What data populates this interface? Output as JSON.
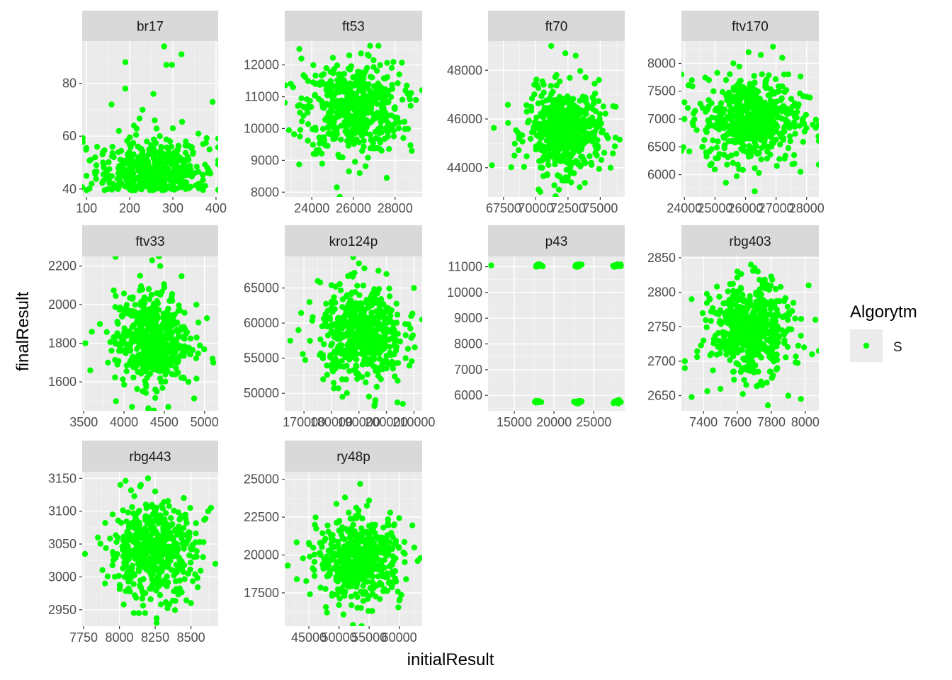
{
  "chart_data": {
    "type": "scatter",
    "xlabel": "initialResult",
    "ylabel": "finalResult",
    "grid": true,
    "legend": {
      "title": "Algorytm",
      "placement": "right",
      "entries": [
        {
          "label": "S",
          "color": "#00FF00"
        }
      ]
    },
    "series_color": "#00FF00",
    "panels": [
      {
        "title": "br17",
        "xlim": [
          90,
          405
        ],
        "ylim": [
          37,
          96
        ],
        "xticks": [
          100,
          200,
          300,
          400
        ],
        "xtick_labels": [
          "100",
          "200",
          "300",
          "400"
        ],
        "yticks": [
          40,
          60,
          80
        ],
        "ytick_labels": [
          "40",
          "60",
          "80"
        ],
        "points": [
          [
            280,
            94
          ],
          [
            320,
            91
          ],
          [
            190,
            88
          ],
          [
            285,
            87
          ],
          [
            298,
            87
          ],
          [
            392,
            73
          ],
          [
            158,
            72
          ],
          [
            190,
            78
          ],
          [
            255,
            76
          ],
          [
            230,
            70
          ],
          [
            258,
            66
          ],
          [
            210,
            64
          ],
          [
            300,
            63
          ],
          [
            175,
            62
          ],
          [
            330,
            58
          ],
          [
            370,
            57
          ],
          [
            385,
            55
          ],
          [
            120,
            52
          ],
          [
            140,
            49
          ],
          [
            100,
            45
          ],
          [
            112,
            42
          ],
          [
            150,
            40
          ],
          [
            200,
            40
          ],
          [
            260,
            41
          ],
          [
            310,
            43
          ],
          [
            350,
            46
          ],
          [
            380,
            48
          ],
          [
            160,
            56
          ],
          [
            240,
            58
          ],
          [
            270,
            60
          ],
          [
            290,
            54
          ],
          [
            220,
            52
          ],
          [
            180,
            45
          ],
          [
            235,
            47
          ],
          [
            265,
            44
          ],
          [
            205,
            51
          ],
          [
            245,
            55
          ],
          [
            275,
            50
          ],
          [
            335,
            52
          ],
          [
            360,
            42
          ]
        ],
        "cloud": {
          "cx": 250,
          "cy": 47,
          "sx": 62,
          "sy": 6,
          "n": 420,
          "ymin": 39.5
        }
      },
      {
        "title": "ft53",
        "xlim": [
          22700,
          29300
        ],
        "ylim": [
          7850,
          12750
        ],
        "xticks": [
          24000,
          26000,
          28000
        ],
        "xtick_labels": [
          "24000",
          "26000",
          "28000"
        ],
        "yticks": [
          8000,
          9000,
          10000,
          11000,
          12000
        ],
        "ytick_labels": [
          "8000",
          "9000",
          "10000",
          "11000",
          "12000"
        ],
        "points": [
          [
            23400,
            12500
          ],
          [
            26800,
            12600
          ],
          [
            27200,
            12600
          ],
          [
            23500,
            12200
          ],
          [
            25200,
            8150
          ],
          [
            27600,
            8450
          ],
          [
            22900,
            9950
          ],
          [
            28800,
            9300
          ],
          [
            29000,
            10900
          ],
          [
            23100,
            11300
          ],
          [
            24200,
            9200
          ],
          [
            24700,
            11900
          ],
          [
            28200,
            11700
          ],
          [
            28400,
            9700
          ],
          [
            25800,
            12300
          ],
          [
            26300,
            8600
          ],
          [
            27900,
            10100
          ],
          [
            23800,
            10500
          ],
          [
            24500,
            8900
          ],
          [
            28600,
            11100
          ]
        ],
        "cloud": {
          "cx": 26000,
          "cy": 10650,
          "sx": 1150,
          "sy": 700,
          "n": 520
        }
      },
      {
        "title": "ft70",
        "xlim": [
          66300,
          76900
        ],
        "ylim": [
          42800,
          49200
        ],
        "xticks": [
          67500,
          70000,
          72500,
          75000
        ],
        "xtick_labels": [
          "67500",
          "70000",
          "72500",
          "75000"
        ],
        "yticks": [
          44000,
          46000,
          48000
        ],
        "ytick_labels": [
          "44000",
          "46000",
          "48000"
        ],
        "points": [
          [
            66600,
            44100
          ],
          [
            71200,
            49000
          ],
          [
            72300,
            48700
          ],
          [
            73100,
            48600
          ],
          [
            71800,
            43100
          ],
          [
            73400,
            43200
          ],
          [
            75800,
            44000
          ],
          [
            76200,
            46500
          ],
          [
            69300,
            46300
          ],
          [
            68700,
            45200
          ],
          [
            74900,
            47600
          ],
          [
            70100,
            47400
          ],
          [
            74300,
            44200
          ],
          [
            70500,
            44000
          ]
        ],
        "cloud": {
          "cx": 72200,
          "cy": 45500,
          "sx": 1450,
          "sy": 850,
          "n": 520
        }
      },
      {
        "title": "ftv170",
        "xlim": [
          23900,
          28400
        ],
        "ylim": [
          5600,
          8400
        ],
        "xticks": [
          24000,
          25000,
          26000,
          27000,
          28000
        ],
        "xtick_labels": [
          "24000",
          "25000",
          "26000",
          "27000",
          "28000"
        ],
        "yticks": [
          6000,
          6500,
          7000,
          7500,
          8000
        ],
        "ytick_labels": [
          "6000",
          "6500",
          "7000",
          "7500",
          "8000"
        ],
        "points": [
          [
            26900,
            8300
          ],
          [
            26100,
            8200
          ],
          [
            26500,
            8150
          ],
          [
            27200,
            8100
          ],
          [
            24000,
            7000
          ],
          [
            24000,
            7300
          ],
          [
            24300,
            7100
          ],
          [
            26300,
            5700
          ],
          [
            27800,
            6050
          ],
          [
            28200,
            6900
          ],
          [
            28000,
            7400
          ],
          [
            27400,
            7800
          ],
          [
            24800,
            7700
          ],
          [
            25100,
            6300
          ],
          [
            24600,
            6500
          ],
          [
            27600,
            6200
          ],
          [
            25600,
            8000
          ],
          [
            24400,
            6800
          ]
        ],
        "cloud": {
          "cx": 26200,
          "cy": 7000,
          "sx": 800,
          "sy": 380,
          "n": 520
        }
      },
      {
        "title": "ftv33",
        "xlim": [
          3480,
          5170
        ],
        "ylim": [
          1450,
          2250
        ],
        "xticks": [
          3500,
          4000,
          4500,
          5000
        ],
        "xtick_labels": [
          "3500",
          "4000",
          "4500",
          "5000"
        ],
        "yticks": [
          1600,
          1800,
          2000,
          2200
        ],
        "ytick_labels": [
          "1600",
          "1800",
          "2000",
          "2200"
        ],
        "points": [
          [
            4350,
            2230
          ],
          [
            4450,
            2200
          ],
          [
            4200,
            2150
          ],
          [
            3520,
            1800
          ],
          [
            3580,
            1660
          ],
          [
            3600,
            1860
          ],
          [
            5100,
            1720
          ],
          [
            5030,
            1930
          ],
          [
            4100,
            1470
          ],
          [
            4550,
            1470
          ],
          [
            4300,
            1460
          ],
          [
            3700,
            1900
          ],
          [
            3900,
            1500
          ],
          [
            4800,
            1600
          ],
          [
            4900,
            2000
          ],
          [
            3800,
            1700
          ]
        ],
        "cloud": {
          "cx": 4350,
          "cy": 1820,
          "sx": 230,
          "sy": 120,
          "n": 520
        }
      },
      {
        "title": "kro124p",
        "xlim": [
          163000,
          213000
        ],
        "ylim": [
          47500,
          69500
        ],
        "xticks": [
          170000,
          180000,
          190000,
          200000,
          210000
        ],
        "xtick_labels": [
          "170000",
          "180000",
          "190000",
          "200000",
          "210000"
        ],
        "yticks": [
          50000,
          55000,
          60000,
          65000
        ],
        "ytick_labels": [
          "50000",
          "55000",
          "60000",
          "65000"
        ],
        "points": [
          [
            165000,
            57500
          ],
          [
            190000,
            68500
          ],
          [
            192000,
            67800
          ],
          [
            175000,
            66000
          ],
          [
            177000,
            52000
          ],
          [
            196000,
            49000
          ],
          [
            204000,
            48700
          ],
          [
            206000,
            48500
          ],
          [
            210000,
            65000
          ],
          [
            209000,
            61000
          ],
          [
            168000,
            59000
          ],
          [
            184000,
            49500
          ],
          [
            200000,
            67000
          ],
          [
            172000,
            63000
          ],
          [
            207000,
            55000
          ],
          [
            180000,
            54000
          ]
        ],
        "cloud": {
          "cx": 191000,
          "cy": 58500,
          "sx": 7500,
          "sy": 3300,
          "n": 520
        }
      },
      {
        "title": "p43",
        "xlim": [
          11700,
          28900
        ],
        "ylim": [
          5400,
          11400
        ],
        "xticks": [
          15000,
          20000,
          25000
        ],
        "xtick_labels": [
          "15000",
          "20000",
          "25000"
        ],
        "yticks": [
          6000,
          7000,
          8000,
          9000,
          10000,
          11000
        ],
        "ytick_labels": [
          "6000",
          "7000",
          "8000",
          "9000",
          "10000",
          "11000"
        ],
        "points": [
          [
            12100,
            11050
          ],
          [
            17800,
            11050
          ],
          [
            18200,
            11070
          ],
          [
            22800,
            11060
          ],
          [
            23200,
            11050
          ],
          [
            27900,
            11050
          ],
          [
            28300,
            11060
          ],
          [
            17600,
            5750
          ],
          [
            18300,
            5740
          ],
          [
            22600,
            5740
          ],
          [
            23400,
            5750
          ],
          [
            27600,
            5760
          ],
          [
            28400,
            5740
          ]
        ],
        "clusters": [
          {
            "cx": 18000,
            "cy": 11050,
            "sx": 180,
            "sy": 20,
            "n": 20
          },
          {
            "cx": 23000,
            "cy": 11040,
            "sx": 200,
            "sy": 22,
            "n": 22
          },
          {
            "cx": 28000,
            "cy": 11040,
            "sx": 200,
            "sy": 25,
            "n": 24
          },
          {
            "cx": 18000,
            "cy": 5750,
            "sx": 170,
            "sy": 20,
            "n": 18
          },
          {
            "cx": 23000,
            "cy": 5740,
            "sx": 200,
            "sy": 24,
            "n": 22
          },
          {
            "cx": 28000,
            "cy": 5750,
            "sx": 210,
            "sy": 26,
            "n": 24
          }
        ]
      },
      {
        "title": "rbg403",
        "xlim": [
          7270,
          8080
        ],
        "ylim": [
          2628,
          2852
        ],
        "xticks": [
          7400,
          7600,
          7800,
          8000
        ],
        "xtick_labels": [
          "7400",
          "7600",
          "7800",
          "8000"
        ],
        "yticks": [
          2650,
          2700,
          2750,
          2800,
          2850
        ],
        "ytick_labels": [
          "2650",
          "2700",
          "2750",
          "2800",
          "2850"
        ],
        "points": [
          [
            7680,
            2840
          ],
          [
            7720,
            2830
          ],
          [
            7600,
            2830
          ],
          [
            7330,
            2648
          ],
          [
            7780,
            2636
          ],
          [
            7290,
            2700
          ],
          [
            7290,
            2690
          ],
          [
            8060,
            2760
          ],
          [
            8040,
            2710
          ],
          [
            8020,
            2810
          ],
          [
            7330,
            2790
          ],
          [
            7900,
            2650
          ],
          [
            7500,
            2660
          ],
          [
            7400,
            2730
          ]
        ],
        "cloud": {
          "cx": 7680,
          "cy": 2745,
          "sx": 115,
          "sy": 33,
          "n": 520
        }
      },
      {
        "title": "rbg443",
        "xlim": [
          7740,
          8690
        ],
        "ylim": [
          2925,
          3160
        ],
        "xticks": [
          7750,
          8000,
          8250,
          8500
        ],
        "xtick_labels": [
          "7750",
          "8000",
          "8250",
          "8500"
        ],
        "yticks": [
          2950,
          3000,
          3050,
          3100,
          3150
        ],
        "ytick_labels": [
          "2950",
          "3000",
          "3050",
          "3100",
          "3150"
        ],
        "points": [
          [
            8200,
            3150
          ],
          [
            8150,
            3140
          ],
          [
            8250,
            3130
          ],
          [
            7760,
            3035
          ],
          [
            8670,
            3020
          ],
          [
            8620,
            3100
          ],
          [
            8640,
            3105
          ],
          [
            8260,
            2930
          ],
          [
            8180,
            2945
          ],
          [
            8100,
            2945
          ],
          [
            7850,
            3060
          ],
          [
            8500,
            2960
          ],
          [
            7900,
            2990
          ],
          [
            8450,
            3120
          ]
        ],
        "cloud": {
          "cx": 8230,
          "cy": 3040,
          "sx": 150,
          "sy": 35,
          "n": 520
        }
      },
      {
        "title": "ry48p",
        "xlim": [
          41000,
          63800
        ],
        "ylim": [
          15300,
          25500
        ],
        "xticks": [
          45000,
          50000,
          55000,
          60000
        ],
        "xtick_labels": [
          "45000",
          "50000",
          "55000",
          "60000"
        ],
        "yticks": [
          17500,
          20000,
          22500,
          25000
        ],
        "ytick_labels": [
          "17500",
          "20000",
          "22500",
          "25000"
        ],
        "points": [
          [
            53500,
            24700
          ],
          [
            51000,
            23800
          ],
          [
            55000,
            23600
          ],
          [
            41500,
            19300
          ],
          [
            43000,
            18400
          ],
          [
            48000,
            16200
          ],
          [
            55500,
            16300
          ],
          [
            63500,
            19800
          ],
          [
            62500,
            20500
          ],
          [
            46000,
            22000
          ],
          [
            60000,
            17000
          ],
          [
            58500,
            22800
          ],
          [
            45000,
            20800
          ],
          [
            50000,
            16700
          ]
        ],
        "cloud": {
          "cx": 53500,
          "cy": 19700,
          "sx": 3500,
          "sy": 1300,
          "n": 520
        }
      }
    ]
  }
}
